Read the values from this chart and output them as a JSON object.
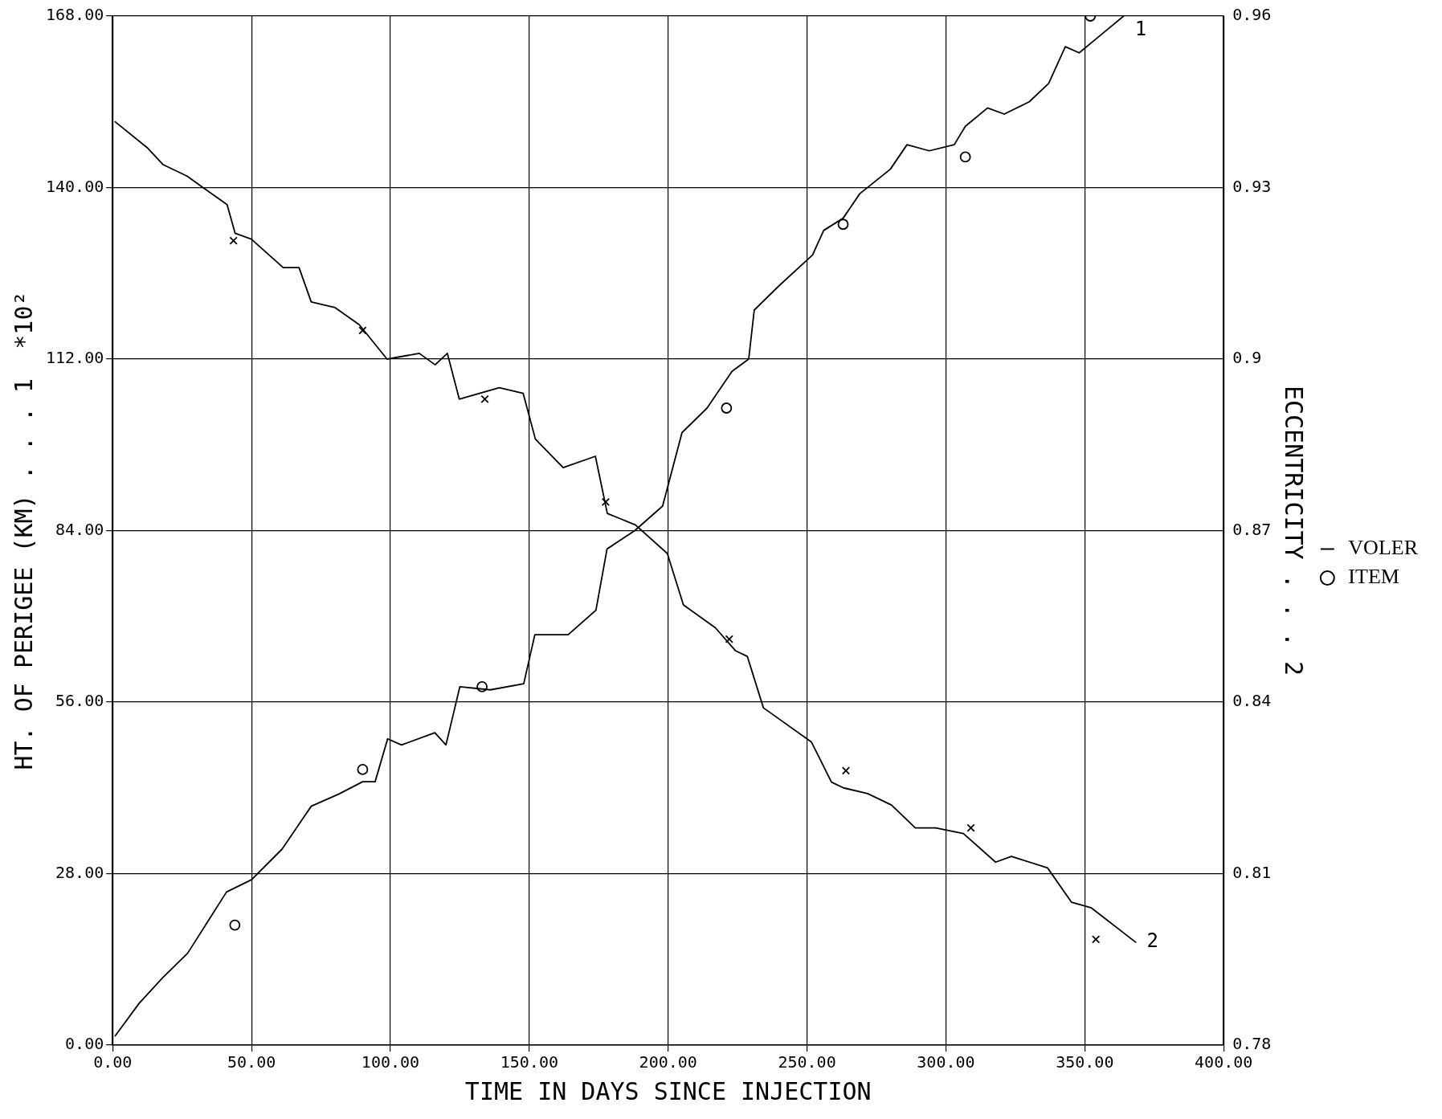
{
  "chart_data": {
    "type": "line",
    "xlabel": "TIME IN DAYS SINCE INJECTION",
    "ylabel": "HT. OF PERIGEE (KM) . . . 1  *10²",
    "y2label": "ECCENTRICITY . . . 2",
    "xlim": [
      0,
      400
    ],
    "xticks": [
      {
        "value": 0,
        "label": "0.00"
      },
      {
        "value": 50,
        "label": "50.00"
      },
      {
        "value": 100,
        "label": "100.00"
      },
      {
        "value": 150,
        "label": "150.00"
      },
      {
        "value": 200,
        "label": "200.00"
      },
      {
        "value": 250,
        "label": "250.00"
      },
      {
        "value": 300,
        "label": "300.00"
      },
      {
        "value": 350,
        "label": "350.00"
      },
      {
        "value": 400,
        "label": "400.00"
      }
    ],
    "ylim": [
      0,
      168
    ],
    "yticks": [
      {
        "value": 0,
        "label": "0.00"
      },
      {
        "value": 28,
        "label": "28.00"
      },
      {
        "value": 56,
        "label": "56.00"
      },
      {
        "value": 84,
        "label": "84.00"
      },
      {
        "value": 112,
        "label": "112.00"
      },
      {
        "value": 140,
        "label": "140.00"
      },
      {
        "value": 168,
        "label": "168.00"
      }
    ],
    "y2lim": [
      0.78,
      0.96
    ],
    "y2ticks": [
      0.78,
      0.81,
      0.84,
      0.87,
      0.9,
      0.93,
      0.96
    ],
    "grid": true,
    "legend": "right",
    "series": [
      {
        "name": "VOLER",
        "color": "#000000",
        "marker": "none",
        "x": [
          0.9,
          9.5,
          18,
          27,
          41,
          50,
          61,
          71.5,
          81.5,
          90,
          94.5,
          99,
          104,
          116,
          120,
          125,
          136,
          148,
          152,
          164,
          174,
          178,
          188,
          198,
          205,
          214,
          223,
          229,
          231,
          240,
          252,
          256,
          263,
          269,
          280,
          286,
          294,
          303,
          307,
          315,
          321,
          330,
          337,
          343,
          348,
          356,
          364
        ],
        "values": [
          1.5,
          6.8,
          11,
          15,
          25,
          27,
          32,
          39,
          41,
          43,
          43,
          50,
          49,
          51,
          49,
          58.5,
          58,
          59,
          67,
          67,
          71,
          81,
          84,
          88,
          100,
          104,
          110,
          112,
          120,
          124,
          129,
          133,
          135,
          139,
          143,
          147,
          146,
          147,
          150,
          153,
          152,
          154,
          157,
          163,
          162,
          165,
          168
        ]
      },
      {
        "axis": "y2",
        "color": "#000000",
        "marker": "none",
        "x": [
          0.9,
          12.4,
          18.2,
          26.8,
          41.2,
          44.1,
          49.9,
          61.4,
          67.1,
          71.5,
          80.1,
          88.8,
          98.8,
          110.4,
          116.1,
          120.5,
          124.8,
          139.2,
          147.8,
          152.2,
          162.2,
          173.8,
          178.1,
          188.2,
          199.7,
          205.5,
          217,
          224.2,
          228.5,
          234.3,
          251.6,
          258.8,
          263.1,
          271.8,
          280.4,
          289,
          296.3,
          306.3,
          317.9,
          323.6,
          336.6,
          345.2,
          352.4,
          368.3
        ],
        "values": [
          0.9415,
          0.937,
          0.934,
          0.932,
          0.927,
          0.922,
          0.921,
          0.916,
          0.916,
          0.91,
          0.909,
          0.906,
          0.9,
          0.901,
          0.899,
          0.901,
          0.893,
          0.895,
          0.894,
          0.886,
          0.881,
          0.883,
          0.873,
          0.871,
          0.866,
          0.857,
          0.853,
          0.849,
          0.848,
          0.839,
          0.833,
          0.826,
          0.825,
          0.824,
          0.822,
          0.818,
          0.818,
          0.817,
          0.812,
          0.813,
          0.811,
          0.805,
          0.804,
          0.798
        ]
      },
      {
        "name": "ITEM",
        "type": "scatter",
        "color": "#000000",
        "marker": "circle",
        "x": [
          44,
          90,
          133,
          221,
          263,
          307,
          352
        ],
        "values": [
          19.6,
          45,
          58.5,
          104,
          134,
          145,
          168
        ]
      },
      {
        "type": "scatter",
        "axis": "y2",
        "color": "#000000",
        "marker": "cross",
        "x": [
          43.5,
          90,
          134,
          177.5,
          222,
          264,
          309,
          354
        ],
        "values": [
          0.9207,
          0.905,
          0.893,
          0.875,
          0.851,
          0.828,
          0.818,
          0.7985
        ]
      }
    ],
    "annotations": [
      "1",
      "2"
    ]
  }
}
